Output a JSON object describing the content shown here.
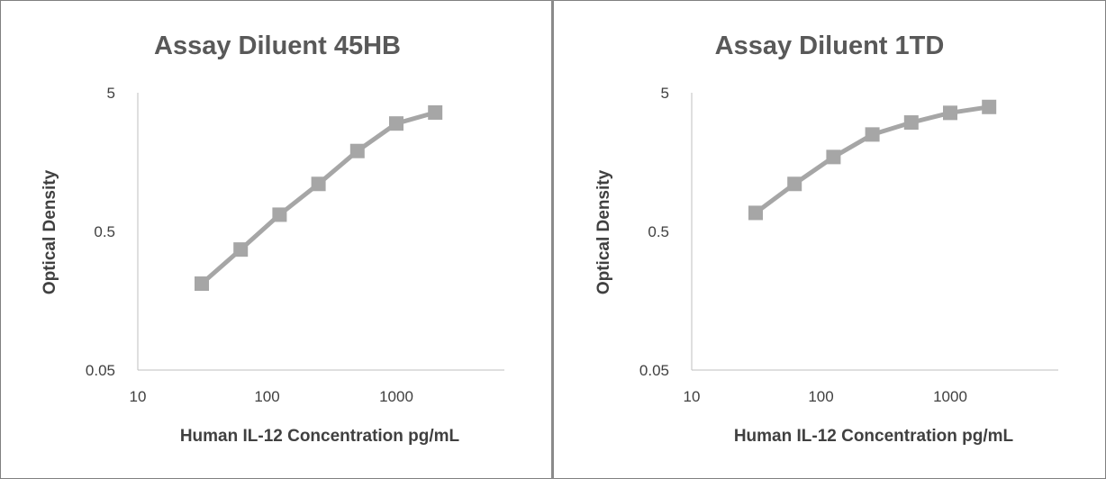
{
  "chart_data": [
    {
      "type": "line",
      "title": "Assay Diluent 45HB",
      "xlabel": "Human IL-12 Concentration pg/mL",
      "ylabel": "Optical Density",
      "x_scale": "log",
      "y_scale": "log",
      "xlim": [
        10,
        5000
      ],
      "ylim": [
        0.05,
        5
      ],
      "x_ticks": [
        "10",
        "100",
        "1000"
      ],
      "y_ticks": [
        "0.05",
        "0.5",
        "5"
      ],
      "grid": false,
      "marker": "square",
      "series_color": "#a6a6a6",
      "series": [
        {
          "x": [
            31.25,
            62.5,
            125,
            250,
            500,
            1000,
            2000
          ],
          "y": [
            0.21,
            0.37,
            0.66,
            1.1,
            1.9,
            3.0,
            3.6
          ]
        }
      ]
    },
    {
      "type": "line",
      "title": "Assay Diluent 1TD",
      "xlabel": "Human IL-12 Concentration pg/mL",
      "ylabel": "Optical Density",
      "x_scale": "log",
      "y_scale": "log",
      "xlim": [
        10,
        5000
      ],
      "ylim": [
        0.05,
        5
      ],
      "x_ticks": [
        "10",
        "100",
        "1000"
      ],
      "y_ticks": [
        "0.05",
        "0.5",
        "5"
      ],
      "grid": false,
      "marker": "square",
      "series_color": "#a6a6a6",
      "series": [
        {
          "x": [
            31.25,
            62.5,
            125,
            250,
            500,
            1000,
            2000
          ],
          "y": [
            0.68,
            1.1,
            1.72,
            2.5,
            3.05,
            3.58,
            3.95
          ]
        }
      ]
    }
  ]
}
